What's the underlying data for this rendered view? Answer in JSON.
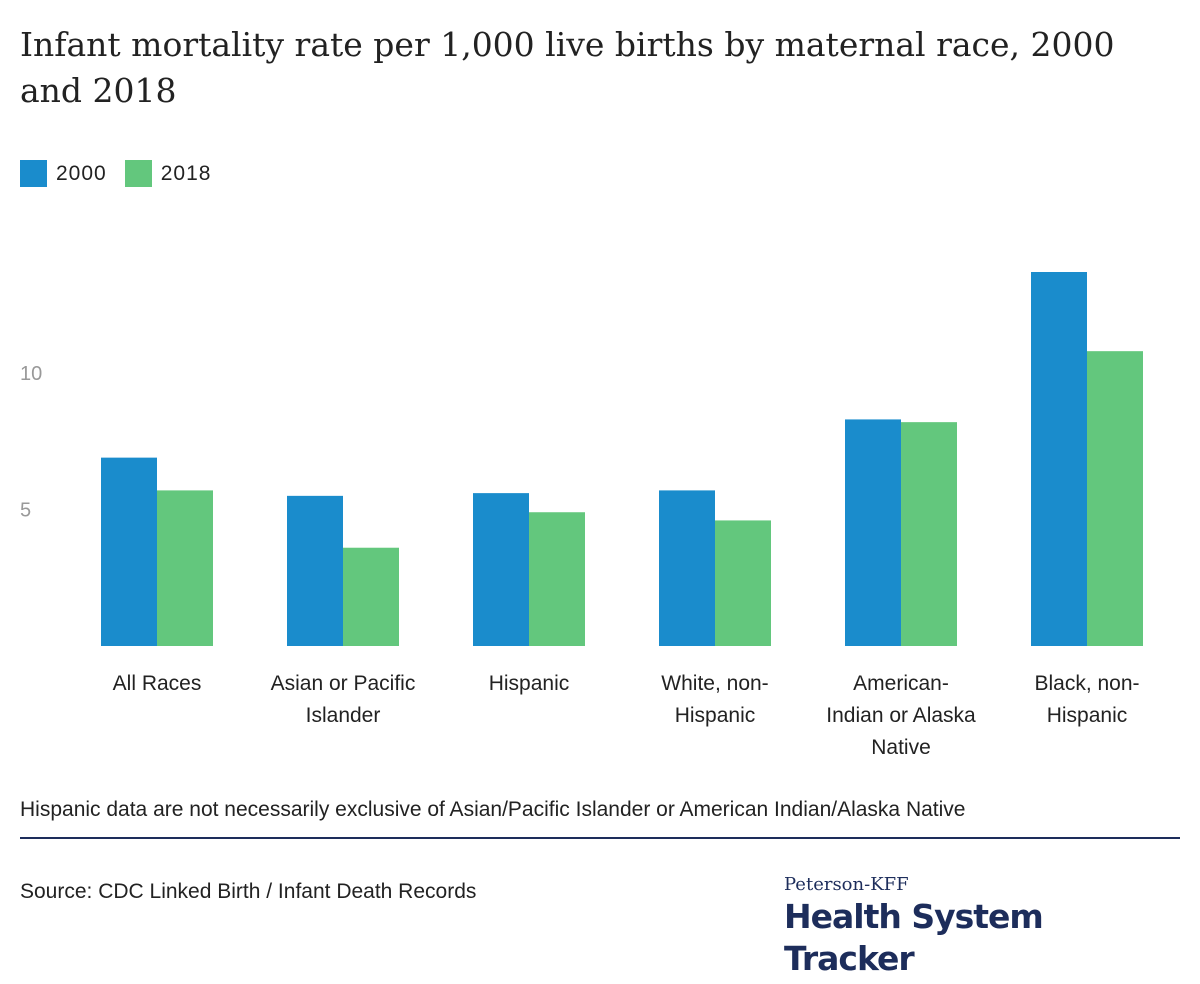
{
  "title": "Infant mortality rate per 1,000 live births by maternal race, 2000 and 2018",
  "colors": {
    "series_2000": "#1a8ccc",
    "series_2018": "#63c77d",
    "brand": "#1d2d5b"
  },
  "legend": [
    {
      "label": "2000",
      "color": "#1a8ccc"
    },
    {
      "label": "2018",
      "color": "#63c77d"
    }
  ],
  "chart_data": {
    "type": "bar",
    "title": "Infant mortality rate per 1,000 live births by maternal race, 2000 and 2018",
    "xlabel": "",
    "ylabel": "",
    "categories": [
      [
        "All Races"
      ],
      [
        "Asian or Pacific",
        "Islander"
      ],
      [
        "Hispanic"
      ],
      [
        "White, non-",
        "Hispanic"
      ],
      [
        "American-",
        "Indian or Alaska",
        "Native"
      ],
      [
        "Black, non-",
        "Hispanic"
      ]
    ],
    "series": [
      {
        "name": "2000",
        "values": [
          6.9,
          5.5,
          5.6,
          5.7,
          8.3,
          13.7
        ]
      },
      {
        "name": "2018",
        "values": [
          5.7,
          3.6,
          4.9,
          4.6,
          8.2,
          10.8
        ]
      }
    ],
    "yticks": [
      5,
      10
    ],
    "ylim": [
      0,
      13.7
    ],
    "grid": false,
    "legend_position": "top-left"
  },
  "note": "Hispanic data are not necessarily exclusive of Asian/Pacific Islander or American Indian/Alaska Native",
  "source": "Source: CDC Linked Birth / Infant Death Records",
  "logo": {
    "small": "Peterson-KFF",
    "big": "Health System Tracker"
  }
}
